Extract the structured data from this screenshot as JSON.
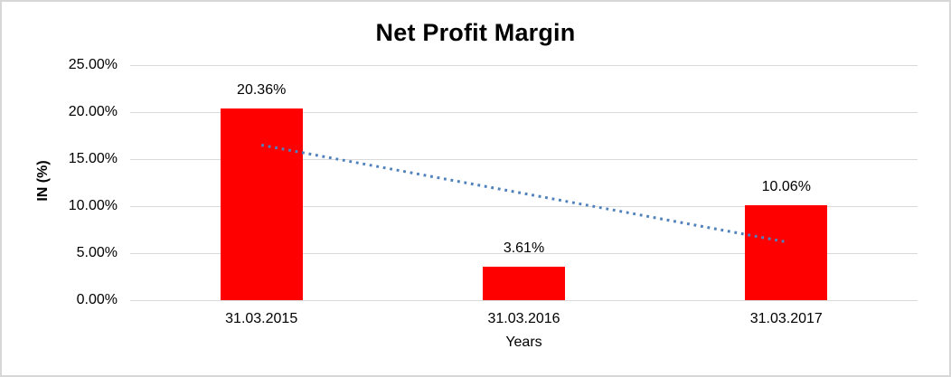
{
  "chart_data": {
    "type": "bar",
    "title": "Net Profit Margin",
    "xlabel": "Years",
    "ylabel": "IN (%)",
    "categories": [
      "31.03.2015",
      "31.03.2016",
      "31.03.2017"
    ],
    "values": [
      20.36,
      3.61,
      10.06
    ],
    "data_labels": [
      "20.36%",
      "3.61%",
      "10.06%"
    ],
    "ylim": [
      0,
      25
    ],
    "ytick_step": 5,
    "ytick_labels": [
      "0.00%",
      "5.00%",
      "10.00%",
      "15.00%",
      "20.00%",
      "25.00%"
    ],
    "grid": true,
    "legend": "none",
    "bar_color": "#FF0000",
    "gridline_color": "#D9D9D9",
    "trendline": {
      "type": "linear",
      "style": "dotted",
      "color": "#4F81BD",
      "start_value": 16.49,
      "end_value": 6.19
    }
  }
}
